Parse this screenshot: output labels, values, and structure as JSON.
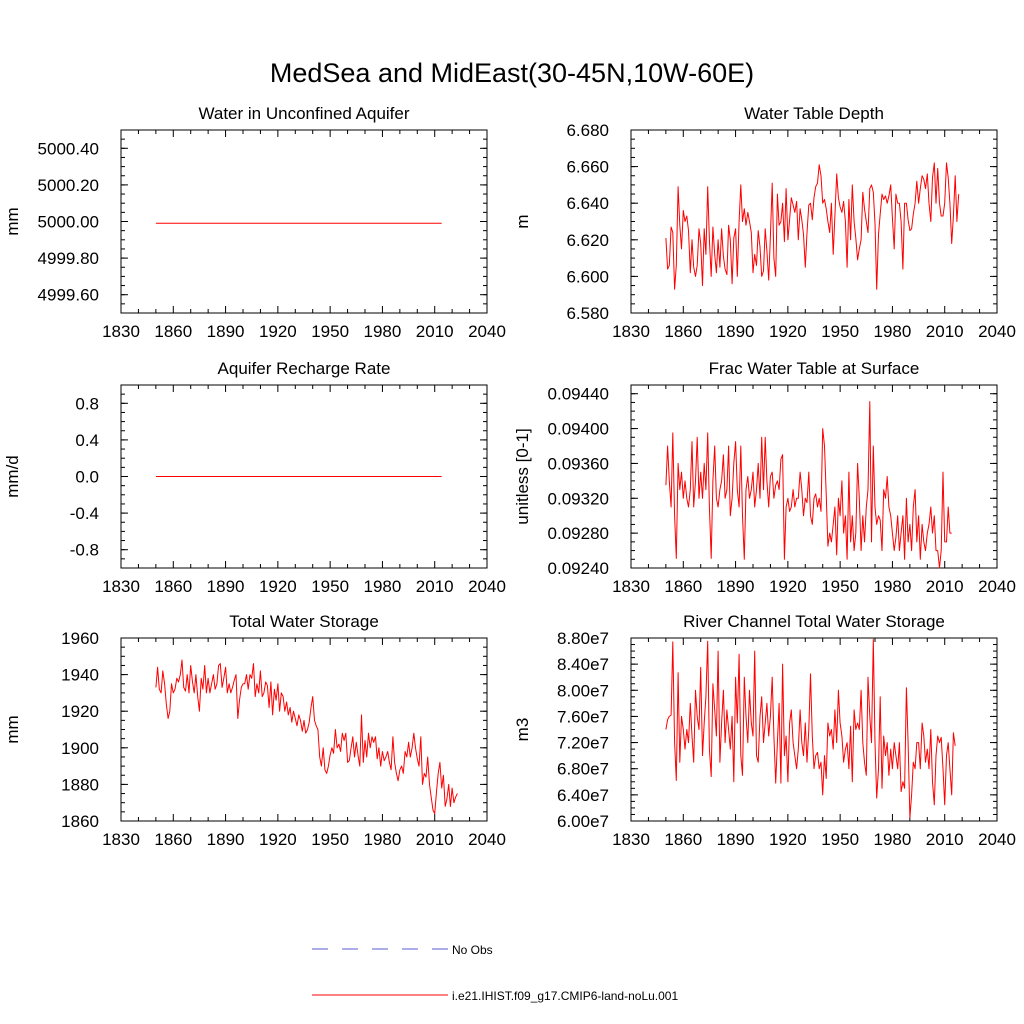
{
  "title": "MedSea and MidEast(30-45N,10W-60E)",
  "legend": {
    "no_obs": "No Obs",
    "model": "i.e21.IHIST.f09_g17.CMIP6-land-noLu.001",
    "no_obs_color": "#5b5bd6",
    "model_color": "#ff0000"
  },
  "chart_data": [
    {
      "type": "line",
      "title": "Water in Unconfined Aquifer",
      "ylabel": "mm",
      "xlim": [
        1830,
        2040
      ],
      "xticks": [
        1830,
        1860,
        1890,
        1920,
        1950,
        1980,
        2010,
        2040
      ],
      "ylim": [
        4999.5,
        5000.5
      ],
      "yticks": [
        "5000.40",
        "5000.20",
        "5000.00",
        "4999.80",
        "4999.60"
      ],
      "series": [
        {
          "name": "i.e21.IHIST.f09_g17.CMIP6-land-noLu.001",
          "color": "#ff0000",
          "x": [
            1850,
            2014
          ],
          "y": [
            4999.99,
            4999.99
          ]
        }
      ]
    },
    {
      "type": "line",
      "title": "Water Table Depth",
      "ylabel": "m",
      "xlim": [
        1830,
        2040
      ],
      "xticks": [
        1830,
        1860,
        1890,
        1920,
        1950,
        1980,
        2010,
        2040
      ],
      "ylim": [
        6.58,
        6.68
      ],
      "yticks": [
        "6.680",
        "6.660",
        "6.640",
        "6.620",
        "6.600",
        "6.580"
      ],
      "series": [
        {
          "name": "i.e21.IHIST.f09_g17.CMIP6-land-noLu.001",
          "color": "#ff0000",
          "x_start": 1850,
          "x_step": 1,
          "y": [
            6.621,
            6.604,
            6.606,
            6.627,
            6.624,
            6.593,
            6.606,
            6.649,
            6.628,
            6.615,
            6.636,
            6.63,
            6.633,
            6.625,
            6.602,
            6.62,
            6.605,
            6.6,
            6.606,
            6.626,
            6.618,
            6.595,
            6.626,
            6.612,
            6.649,
            6.62,
            6.6,
            6.627,
            6.612,
            6.602,
            6.62,
            6.605,
            6.626,
            6.611,
            6.604,
            6.601,
            6.628,
            6.62,
            6.596,
            6.621,
            6.626,
            6.6,
            6.63,
            6.65,
            6.63,
            6.637,
            6.628,
            6.635,
            6.63,
            6.624,
            6.602,
            6.612,
            6.606,
            6.625,
            6.616,
            6.6,
            6.603,
            6.626,
            6.614,
            6.598,
            6.622,
            6.651,
            6.61,
            6.6,
            6.645,
            6.628,
            6.63,
            6.64,
            6.619,
            6.648,
            6.62,
            6.631,
            6.643,
            6.639,
            6.635,
            6.641,
            6.62,
            6.637,
            6.631,
            6.623,
            6.605,
            6.624,
            6.639,
            6.64,
            6.631,
            6.643,
            6.649,
            6.651,
            6.661,
            6.655,
            6.64,
            6.642,
            6.637,
            6.63,
            6.624,
            6.64,
            6.612,
            6.633,
            6.656,
            6.643,
            6.638,
            6.635,
            6.641,
            6.63,
            6.605,
            6.642,
            6.62,
            6.65,
            6.63,
            6.621,
            6.609,
            6.615,
            6.62,
            6.646,
            6.637,
            6.63,
            6.624,
            6.648,
            6.65,
            6.646,
            6.629,
            6.593,
            6.623,
            6.634,
            6.645,
            6.642,
            6.644,
            6.64,
            6.644,
            6.65,
            6.632,
            6.615,
            6.645,
            6.64,
            6.64,
            6.63,
            6.604,
            6.64,
            6.64,
            6.631,
            6.625,
            6.626,
            6.634,
            6.64,
            6.652,
            6.64,
            6.648,
            6.655,
            6.653,
            6.648,
            6.656,
            6.64,
            6.63,
            6.654,
            6.662,
            6.64,
            6.659,
            6.64,
            6.633,
            6.633,
            6.64,
            6.662,
            6.654,
            6.64,
            6.618,
            6.633,
            6.655,
            6.63,
            6.645
          ]
        }
      ]
    },
    {
      "type": "line",
      "title": "Aquifer Recharge Rate",
      "ylabel": "mm/d",
      "xlim": [
        1830,
        2040
      ],
      "xticks": [
        1830,
        1860,
        1890,
        1920,
        1950,
        1980,
        2010,
        2040
      ],
      "ylim": [
        -1.0,
        1.0
      ],
      "yticks": [
        "0.8",
        "0.4",
        "0.0",
        "-0.4",
        "-0.8"
      ],
      "series": [
        {
          "name": "i.e21.IHIST.f09_g17.CMIP6-land-noLu.001",
          "color": "#ff0000",
          "x": [
            1850,
            2014
          ],
          "y": [
            0.0,
            0.0
          ]
        }
      ]
    },
    {
      "type": "line",
      "title": "Frac Water Table at Surface",
      "ylabel": "unitless [0-1]",
      "xlim": [
        1830,
        2040
      ],
      "xticks": [
        1830,
        1860,
        1890,
        1920,
        1950,
        1980,
        2010,
        2040
      ],
      "ylim": [
        0.0924,
        0.0945
      ],
      "yticks": [
        "0.09440",
        "0.09400",
        "0.09360",
        "0.09320",
        "0.09280",
        "0.09240"
      ],
      "series": [
        {
          "name": "i.e21.IHIST.f09_g17.CMIP6-land-noLu.001",
          "color": "#ff0000",
          "x_start": 1850,
          "x_step": 1,
          "y": [
            0.09335,
            0.0938,
            0.0934,
            0.0931,
            0.09395,
            0.093,
            0.09251,
            0.0936,
            0.0933,
            0.0935,
            0.0932,
            0.0934,
            0.0932,
            0.0931,
            0.0933,
            0.09385,
            0.0931,
            0.0934,
            0.0939,
            0.0932,
            0.0935,
            0.0932,
            0.0936,
            0.0933,
            0.09395,
            0.0931,
            0.09251,
            0.0934,
            0.0938,
            0.0932,
            0.0931,
            0.0933,
            0.0934,
            0.0937,
            0.0932,
            0.0933,
            0.0938,
            0.093,
            0.0932,
            0.0936,
            0.09385,
            0.0933,
            0.0931,
            0.0938,
            0.093,
            0.0925,
            0.0933,
            0.09345,
            0.0932,
            0.0933,
            0.0935,
            0.0931,
            0.0933,
            0.0936,
            0.0932,
            0.0939,
            0.0933,
            0.0939,
            0.0934,
            0.0931,
            0.09345,
            0.0935,
            0.0932,
            0.09335,
            0.0934,
            0.0933,
            0.09365,
            0.0937,
            0.0925,
            0.0931,
            0.0932,
            0.09305,
            0.0931,
            0.0933,
            0.0931,
            0.0932,
            0.0932,
            0.0935,
            0.0933,
            0.093,
            0.0932,
            0.09315,
            0.0935,
            0.093,
            0.0929,
            0.0932,
            0.09325,
            0.0931,
            0.0932,
            0.09305,
            0.094,
            0.0938,
            0.09325,
            0.09265,
            0.0928,
            0.0927,
            0.0929,
            0.0931,
            0.09255,
            0.0932,
            0.093,
            0.0934,
            0.0928,
            0.093,
            0.0925,
            0.0935,
            0.0927,
            0.093,
            0.0926,
            0.0928,
            0.0936,
            0.0932,
            0.0926,
            0.093,
            0.0927,
            0.0931,
            0.0933,
            0.09431,
            0.0927,
            0.0938,
            0.0931,
            0.0929,
            0.093,
            0.09295,
            0.0926,
            0.0933,
            0.0932,
            0.09345,
            0.0931,
            0.093,
            0.0928,
            0.0926,
            0.09275,
            0.093,
            0.0926,
            0.0928,
            0.093,
            0.0925,
            0.0932,
            0.0927,
            0.0929,
            0.0926,
            0.0931,
            0.0933,
            0.0927,
            0.093,
            0.0925,
            0.0929,
            0.0927,
            0.0926,
            0.0928,
            0.0929,
            0.0931,
            0.0928,
            0.093,
            0.0926,
            0.0926,
            0.0924,
            0.0926,
            0.0935,
            0.0927,
            0.0927,
            0.0931,
            0.0928,
            0.0928
          ]
        }
      ]
    },
    {
      "type": "line",
      "title": "Total Water Storage",
      "ylabel": "mm",
      "xlim": [
        1830,
        2040
      ],
      "xticks": [
        1830,
        1860,
        1890,
        1920,
        1950,
        1980,
        2010,
        2040
      ],
      "ylim": [
        1860,
        1960
      ],
      "yticks": [
        "1960",
        "1940",
        "1920",
        "1900",
        "1880",
        "1860"
      ],
      "series": [
        {
          "name": "i.e21.IHIST.f09_g17.CMIP6-land-noLu.001",
          "color": "#ff0000",
          "x_start": 1850,
          "x_step": 1,
          "y": [
            1933,
            1944,
            1932,
            1930,
            1942,
            1935,
            1924,
            1916,
            1920,
            1935,
            1930,
            1932,
            1938,
            1936,
            1940,
            1948,
            1933,
            1931,
            1940,
            1930,
            1945,
            1936,
            1930,
            1940,
            1928,
            1920,
            1938,
            1932,
            1945,
            1930,
            1938,
            1930,
            1935,
            1940,
            1932,
            1935,
            1945,
            1946,
            1933,
            1938,
            1944,
            1930,
            1935,
            1930,
            1933,
            1937,
            1940,
            1916,
            1926,
            1933,
            1935,
            1935,
            1940,
            1932,
            1940,
            1938,
            1946,
            1928,
            1935,
            1930,
            1942,
            1928,
            1930,
            1936,
            1934,
            1922,
            1936,
            1918,
            1932,
            1926,
            1935,
            1920,
            1930,
            1928,
            1920,
            1925,
            1918,
            1922,
            1914,
            1920,
            1916,
            1912,
            1918,
            1915,
            1909,
            1915,
            1908,
            1910,
            1914,
            1922,
            1928,
            1915,
            1912,
            1910,
            1895,
            1890,
            1900,
            1888,
            1886,
            1890,
            1896,
            1900,
            1897,
            1910,
            1900,
            1902,
            1898,
            1908,
            1904,
            1908,
            1892,
            1893,
            1900,
            1906,
            1895,
            1903,
            1896,
            1890,
            1918,
            1892,
            1904,
            1895,
            1908,
            1900,
            1906,
            1903,
            1906,
            1894,
            1900,
            1890,
            1898,
            1893,
            1895,
            1898,
            1892,
            1888,
            1906,
            1892,
            1886,
            1882,
            1888,
            1890,
            1886,
            1898,
            1895,
            1903,
            1895,
            1900,
            1908,
            1900,
            1894,
            1890,
            1906,
            1880,
            1886,
            1884,
            1895,
            1880,
            1873,
            1866,
            1864,
            1876,
            1886,
            1892,
            1878,
            1885,
            1868,
            1872,
            1880,
            1868,
            1878,
            1870,
            1873,
            1875
          ]
        }
      ]
    },
    {
      "type": "line",
      "title": "River Channel Total Water Storage",
      "ylabel": "m3",
      "xlim": [
        1830,
        2040
      ],
      "xticks": [
        1830,
        1860,
        1890,
        1920,
        1950,
        1980,
        2010,
        2040
      ],
      "ylim": [
        60000000,
        88000000
      ],
      "yticks": [
        "8.80e7",
        "8.40e7",
        "8.00e7",
        "7.60e7",
        "7.20e7",
        "6.80e7",
        "6.40e7",
        "6.00e7"
      ],
      "series": [
        {
          "name": "i.e21.IHIST.f09_g17.CMIP6-land-noLu.001",
          "color": "#ff0000",
          "x_start": 1850,
          "x_step": 1,
          "y": [
            74000000,
            75500000,
            76000000,
            76200000,
            87400000,
            72000000,
            66200000,
            82700000,
            69000000,
            76000000,
            74000000,
            71000000,
            74000000,
            72000000,
            78000000,
            73000000,
            69000000,
            80000000,
            76000000,
            74000000,
            83500000,
            70000000,
            75000000,
            79000000,
            87500000,
            71000000,
            66800000,
            81000000,
            77000000,
            73000000,
            86000000,
            69000000,
            75000000,
            80000000,
            72000000,
            77000000,
            74000000,
            71000000,
            76000000,
            66000000,
            82000000,
            75000000,
            85500000,
            70000000,
            67000000,
            82000000,
            76000000,
            72000000,
            80000000,
            75000000,
            73000000,
            86000000,
            70000000,
            69000000,
            76000000,
            79000000,
            72000000,
            75000000,
            78000000,
            73000000,
            76000000,
            82000000,
            73000000,
            65800000,
            72000000,
            78000000,
            65800000,
            84000000,
            70000000,
            73000000,
            66000000,
            75000000,
            77000000,
            72000000,
            70000000,
            68000000,
            71000000,
            77000000,
            72000000,
            70000000,
            75000000,
            69000000,
            74000000,
            82500000,
            73000000,
            68000000,
            70000000,
            70500000,
            68000000,
            69000000,
            64000000,
            70000000,
            66500000,
            75000000,
            73000000,
            74000000,
            71000000,
            77000000,
            72000000,
            80000000,
            75000000,
            73000000,
            69000000,
            71000000,
            72000000,
            68000000,
            74500000,
            66000000,
            77000000,
            74000000,
            75000000,
            74000000,
            80000000,
            72000000,
            69000000,
            67000000,
            82000000,
            76000000,
            72000000,
            87800000,
            72000000,
            63500000,
            68000000,
            79000000,
            65000000,
            73000000,
            70000000,
            72000000,
            67000000,
            71000000,
            68000000,
            72000000,
            70000000,
            68000000,
            72000000,
            64500000,
            66000000,
            65000000,
            80400000,
            72000000,
            60500000,
            64000000,
            69000000,
            68000000,
            72000000,
            72000000,
            68000000,
            75000000,
            73000000,
            69000000,
            71000000,
            68000000,
            74000000,
            66000000,
            62500000,
            70000000,
            73000000,
            72000000,
            72800000,
            68000000,
            62500000,
            70000000,
            72000000,
            68000000,
            64000000,
            73500000,
            71500000
          ]
        }
      ]
    }
  ]
}
